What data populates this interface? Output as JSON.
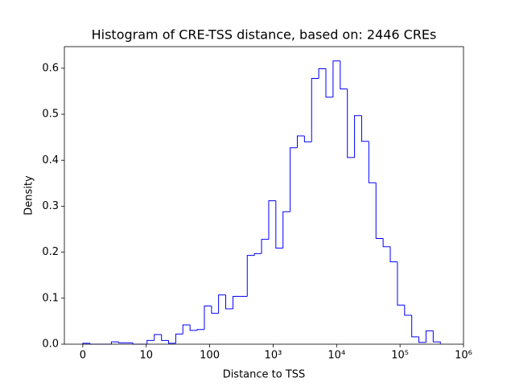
{
  "chart_data": {
    "type": "histogram",
    "title": "Histogram of CRE-TSS distance, based on: 2446 CREs",
    "xlabel": "Distance to TSS",
    "ylabel": "Density",
    "xscale": "symlog",
    "linthresh": 10,
    "color": "#0000ff",
    "bins": [
      0,
      1.13,
      2.25,
      3.38,
      4.51,
      5.64,
      6.76,
      7.89,
      9.02,
      10.3,
      13.4,
      17.4,
      22.5,
      29.2,
      37.8,
      49.0,
      63.6,
      82.4,
      107,
      138,
      179,
      233,
      302,
      391,
      507,
      657,
      852,
      1104,
      1431,
      1855,
      2404,
      3116,
      4041,
      5237,
      6787,
      8800,
      11410,
      14790,
      19170,
      24850,
      32210,
      41760,
      54130,
      70170,
      90960,
      117900,
      152900,
      198100,
      256800,
      333000,
      431500
    ],
    "counts": [
      0.002,
      0,
      0,
      0,
      0.005,
      0.003,
      0.003,
      0,
      0,
      0.008,
      0.021,
      0.008,
      0.002,
      0.022,
      0.042,
      0.03,
      0.032,
      0.083,
      0.067,
      0.107,
      0.077,
      0.104,
      0.104,
      0.193,
      0.197,
      0.228,
      0.312,
      0.209,
      0.288,
      0.427,
      0.453,
      0.44,
      0.578,
      0.599,
      0.537,
      0.616,
      0.555,
      0.406,
      0.497,
      0.441,
      0.351,
      0.23,
      0.212,
      0.179,
      0.085,
      0.063,
      0.016,
      0.004,
      0.029,
      0.005
    ],
    "xlim": [
      -2.9,
      1000000
    ],
    "ylim": [
      0,
      0.647
    ],
    "xticks": [
      0,
      10,
      100,
      {
        "value": 1000,
        "label": "10³"
      },
      {
        "value": 10000,
        "label": "10⁴"
      },
      {
        "value": 100000,
        "label": "10⁵"
      },
      {
        "value": 1000000,
        "label": "10⁶"
      }
    ],
    "yticks": [
      {
        "value": 0,
        "label": "0.0"
      },
      0.1,
      0.2,
      0.3,
      0.4,
      0.5,
      0.6
    ],
    "grid": false
  }
}
